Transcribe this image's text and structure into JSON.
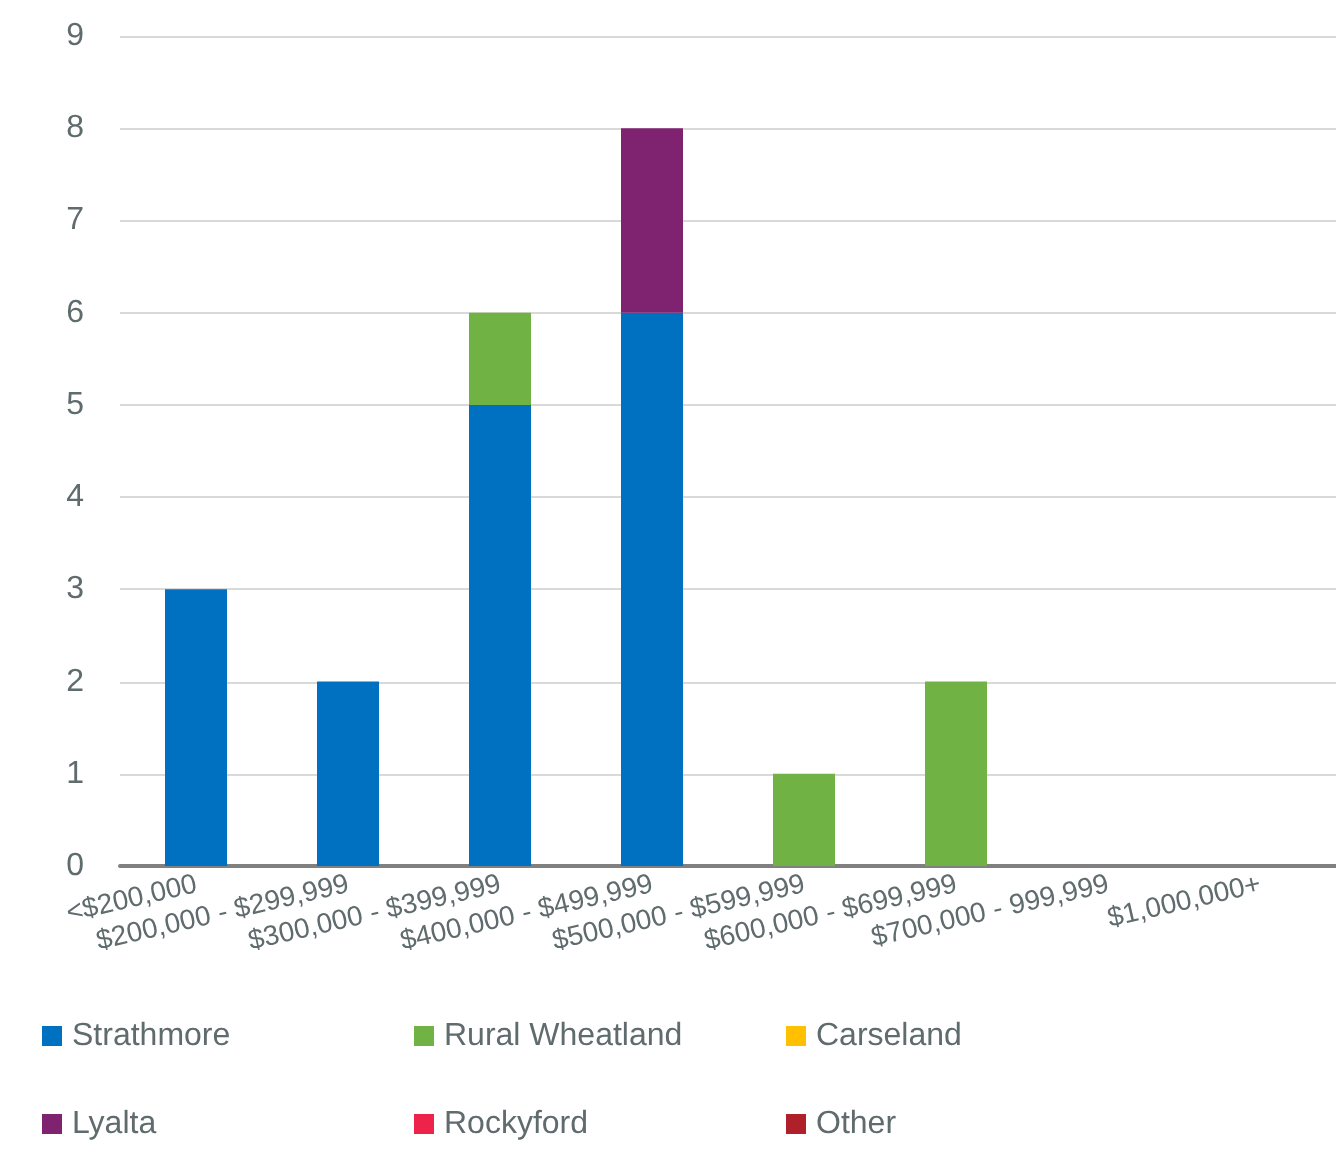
{
  "chart_data": {
    "type": "bar",
    "stacked": true,
    "categories": [
      "<$200,000",
      "$200,000 - $299,999",
      "$300,000 - $399,999",
      "$400,000 - $499,999",
      "$500,000 - $599,999",
      "$600,000 - $699,999",
      "$700,000 - 999,999",
      "$1,000,000+"
    ],
    "series": [
      {
        "name": "Strathmore",
        "color": "#0070c0",
        "values": [
          3,
          2,
          5,
          6,
          0,
          0,
          0,
          0
        ]
      },
      {
        "name": "Rural Wheatland",
        "color": "#70b244",
        "values": [
          0,
          0,
          1,
          0,
          1,
          2,
          0,
          0
        ]
      },
      {
        "name": "Carseland",
        "color": "#ffc000",
        "values": [
          0,
          0,
          0,
          0,
          0,
          0,
          0,
          0
        ]
      },
      {
        "name": "Lyalta",
        "color": "#7f2370",
        "values": [
          0,
          0,
          0,
          2,
          0,
          0,
          0,
          0
        ]
      },
      {
        "name": "Rockyford",
        "color": "#ee2349",
        "values": [
          0,
          0,
          0,
          0,
          0,
          0,
          0,
          0
        ]
      },
      {
        "name": "Other",
        "color": "#b0202a",
        "values": [
          0,
          0,
          0,
          0,
          0,
          0,
          0,
          0
        ]
      }
    ],
    "ylim": [
      0,
      9
    ],
    "yticks": [
      0,
      1,
      2,
      3,
      4,
      5,
      6,
      7,
      8,
      9
    ],
    "grid": "y",
    "legend": "bottom"
  }
}
